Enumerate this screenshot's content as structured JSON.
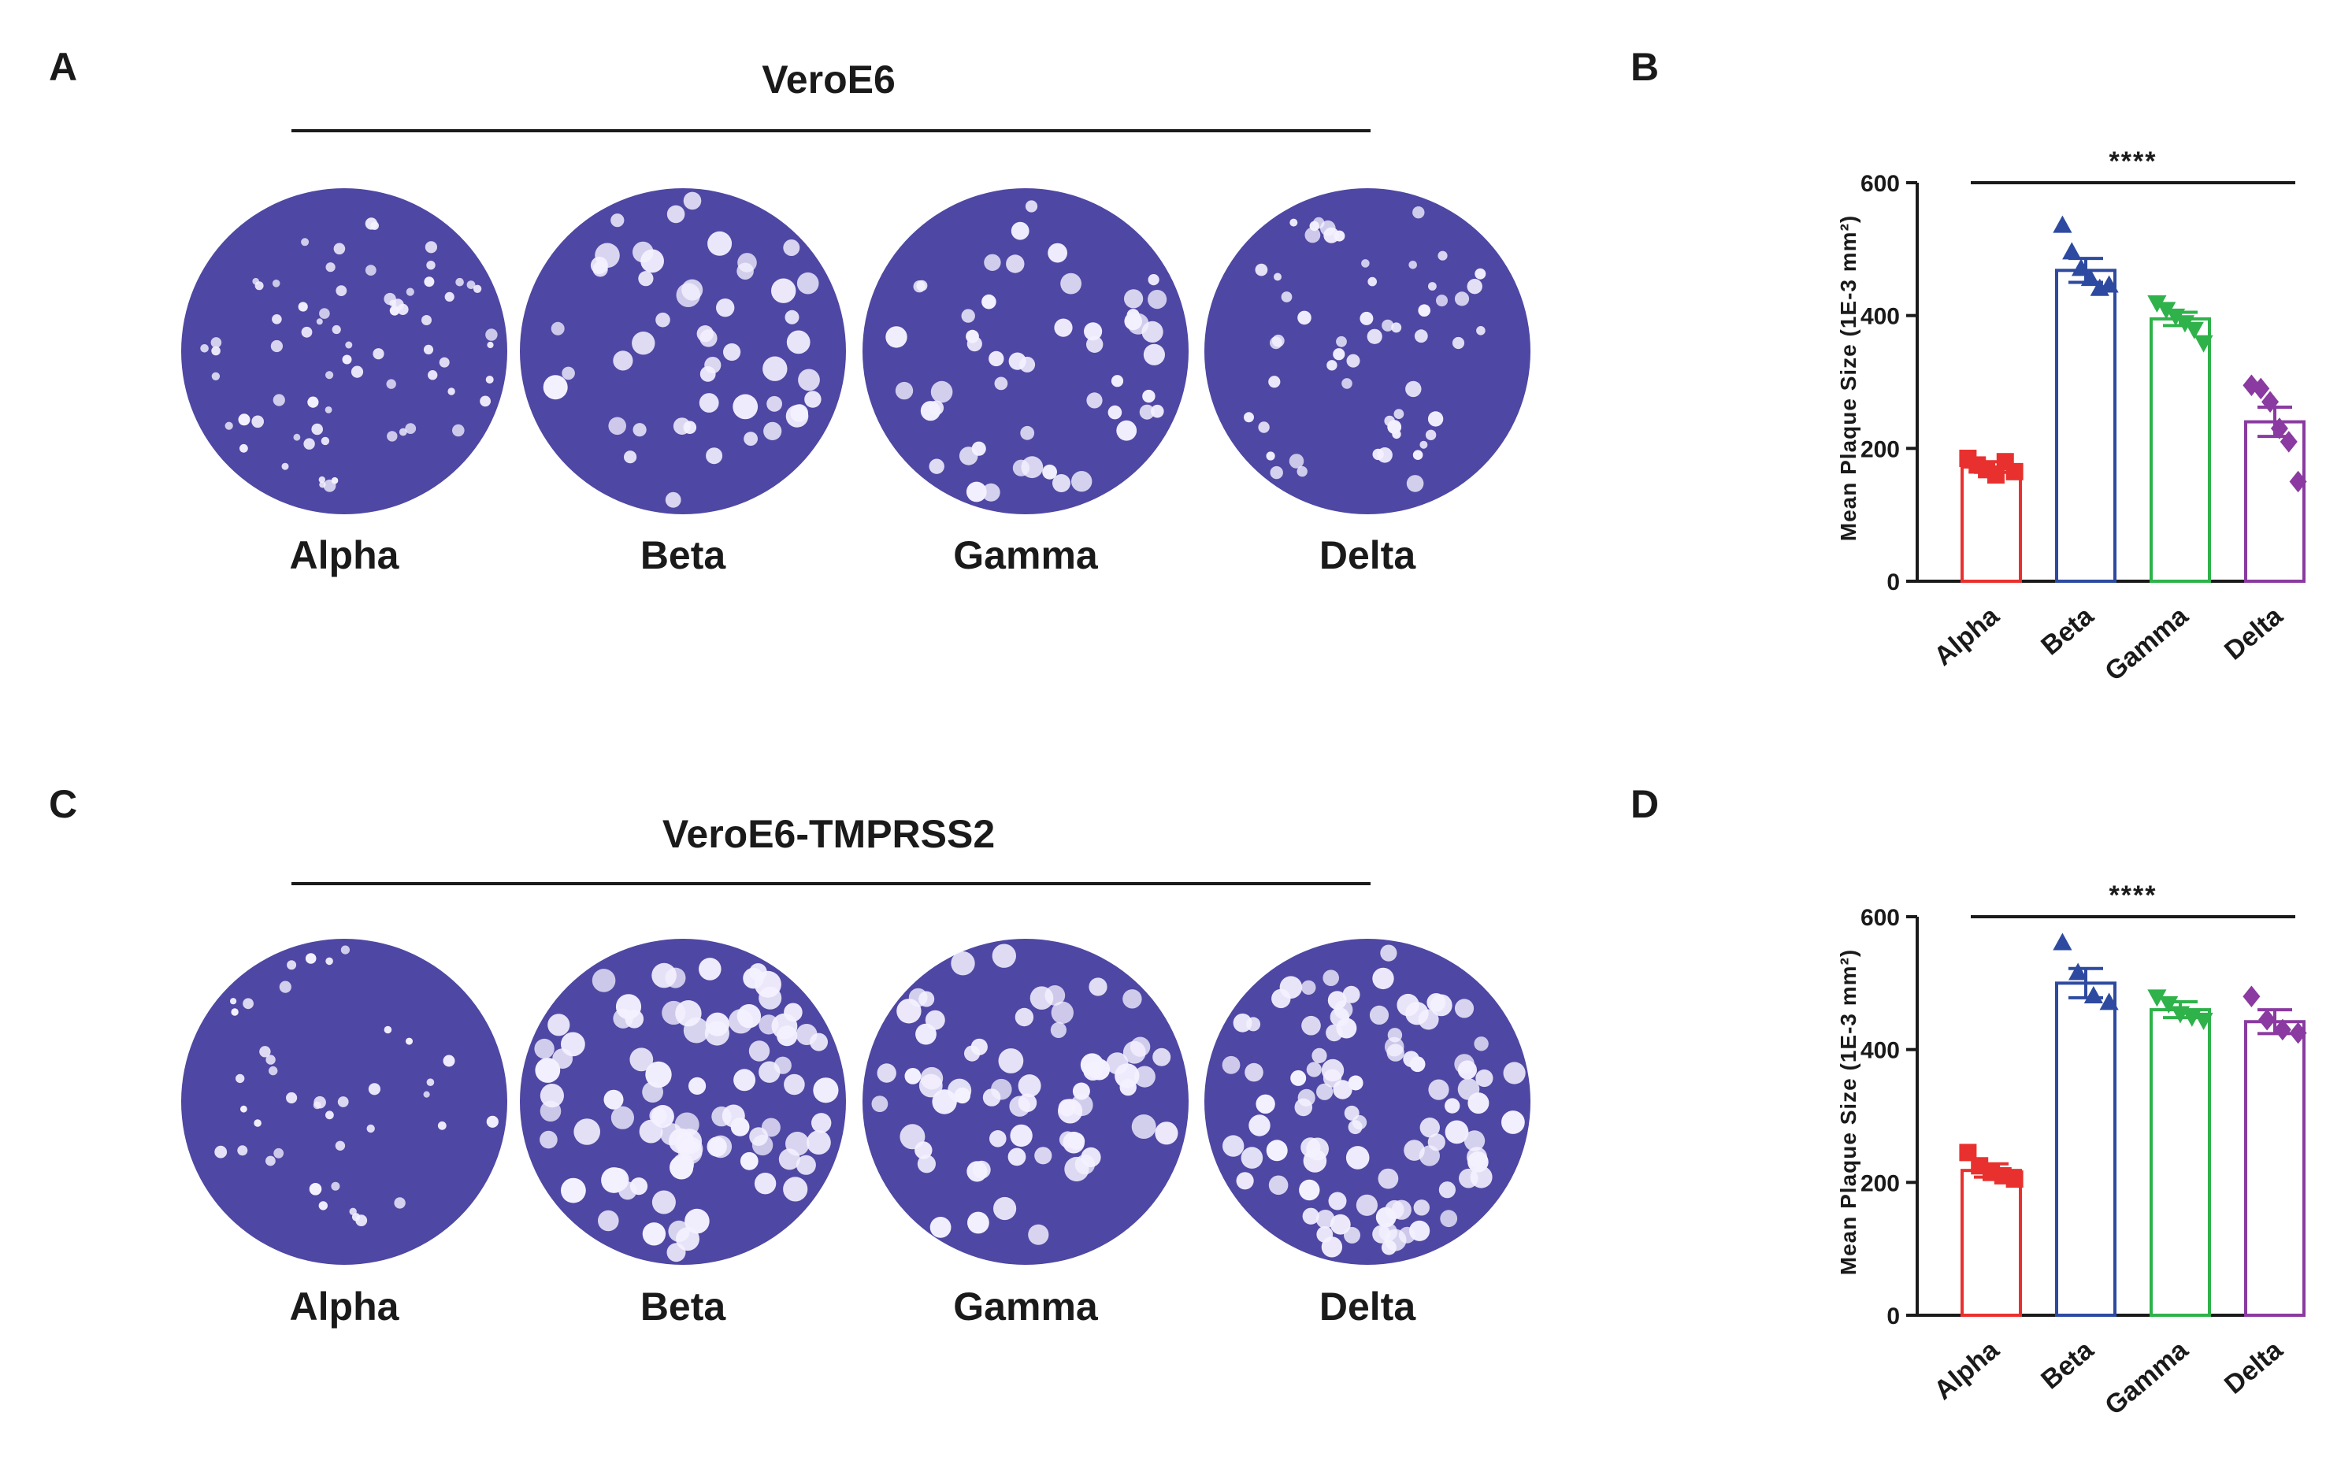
{
  "panels": {
    "A": {
      "letter": "A",
      "title": "VeroE6",
      "dishes": [
        "Alpha",
        "Beta",
        "Gamma",
        "Delta"
      ]
    },
    "C": {
      "letter": "C",
      "title": "VeroE6-TMPRSS2",
      "dishes": [
        "Alpha",
        "Beta",
        "Gamma",
        "Delta"
      ]
    },
    "B": {
      "letter": "B"
    },
    "D": {
      "letter": "D"
    }
  },
  "colors": {
    "Alpha": "#e8312f",
    "Beta": "#2d4aa0",
    "Gamma": "#2fb24a",
    "Delta": "#8a3aa0",
    "dish": "#4e47a3",
    "plaque": "#f4f1ff"
  },
  "chart_data": [
    {
      "panel": "B",
      "type": "bar",
      "categories": [
        "Alpha",
        "Beta",
        "Gamma",
        "Delta"
      ],
      "values": [
        172,
        468,
        395,
        240
      ],
      "sem": [
        8,
        18,
        10,
        22
      ],
      "points": [
        [
          185,
          175,
          168,
          160,
          180,
          165
        ],
        [
          535,
          495,
          470,
          455,
          440,
          445
        ],
        [
          420,
          410,
          400,
          390,
          380,
          360
        ],
        [
          295,
          290,
          270,
          230,
          210,
          150
        ]
      ],
      "markers": [
        "square",
        "triangle-up",
        "triangle-down",
        "diamond"
      ],
      "ylabel": "Mean Plaque Size (1E-3 mm²)",
      "ylim": [
        0,
        600
      ],
      "yticks": [
        0,
        200,
        400,
        600
      ],
      "significance": "****"
    },
    {
      "panel": "D",
      "type": "bar",
      "categories": [
        "Alpha",
        "Beta",
        "Gamma",
        "Delta"
      ],
      "values": [
        218,
        500,
        460,
        442
      ],
      "sem": [
        10,
        22,
        12,
        18
      ],
      "points": [
        [
          245,
          225,
          215,
          210,
          205
        ],
        [
          560,
          515,
          480,
          470
        ],
        [
          480,
          470,
          455,
          450,
          445
        ],
        [
          480,
          445,
          430,
          425
        ]
      ],
      "markers": [
        "square",
        "triangle-up",
        "triangle-down",
        "diamond"
      ],
      "ylabel": "Mean Plaque Size (1E-3 mm²)",
      "ylim": [
        0,
        600
      ],
      "yticks": [
        0,
        200,
        400,
        600
      ],
      "significance": "****"
    }
  ]
}
